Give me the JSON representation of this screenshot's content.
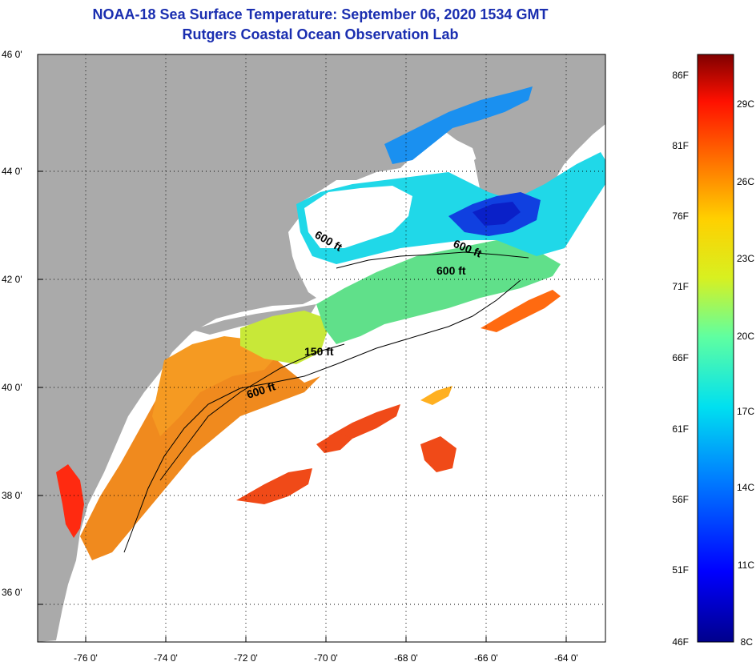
{
  "title": {
    "line1": "NOAA-18 Sea Surface Temperature:  September 06, 2020 1534 GMT",
    "line2": "Rutgers Coastal Ocean Observation Lab"
  },
  "axes": {
    "lat_labels": [
      "46 0'",
      "44 0'",
      "42 0'",
      "40 0'",
      "38 0'",
      "36 0'"
    ],
    "lon_labels": [
      "-76 0'",
      "-74 0'",
      "-72 0'",
      "-70 0'",
      "-68 0'",
      "-66 0'",
      "-64 0'"
    ]
  },
  "contours": [
    {
      "label": "600 ft"
    },
    {
      "label": "600 ft"
    },
    {
      "label": "600 ft"
    },
    {
      "label": "150 ft"
    },
    {
      "label": "600 ft"
    }
  ],
  "colorbar": {
    "fahrenheit": [
      "86F",
      "81F",
      "76F",
      "71F",
      "66F",
      "61F",
      "56F",
      "51F",
      "46F"
    ],
    "celsius": [
      "29C",
      "26C",
      "23C",
      "20C",
      "17C",
      "14C",
      "11C",
      "8C"
    ]
  },
  "colors": {
    "land": "#aaaaaa",
    "no_data": "#ffffff",
    "title": "#1a2eb0"
  }
}
